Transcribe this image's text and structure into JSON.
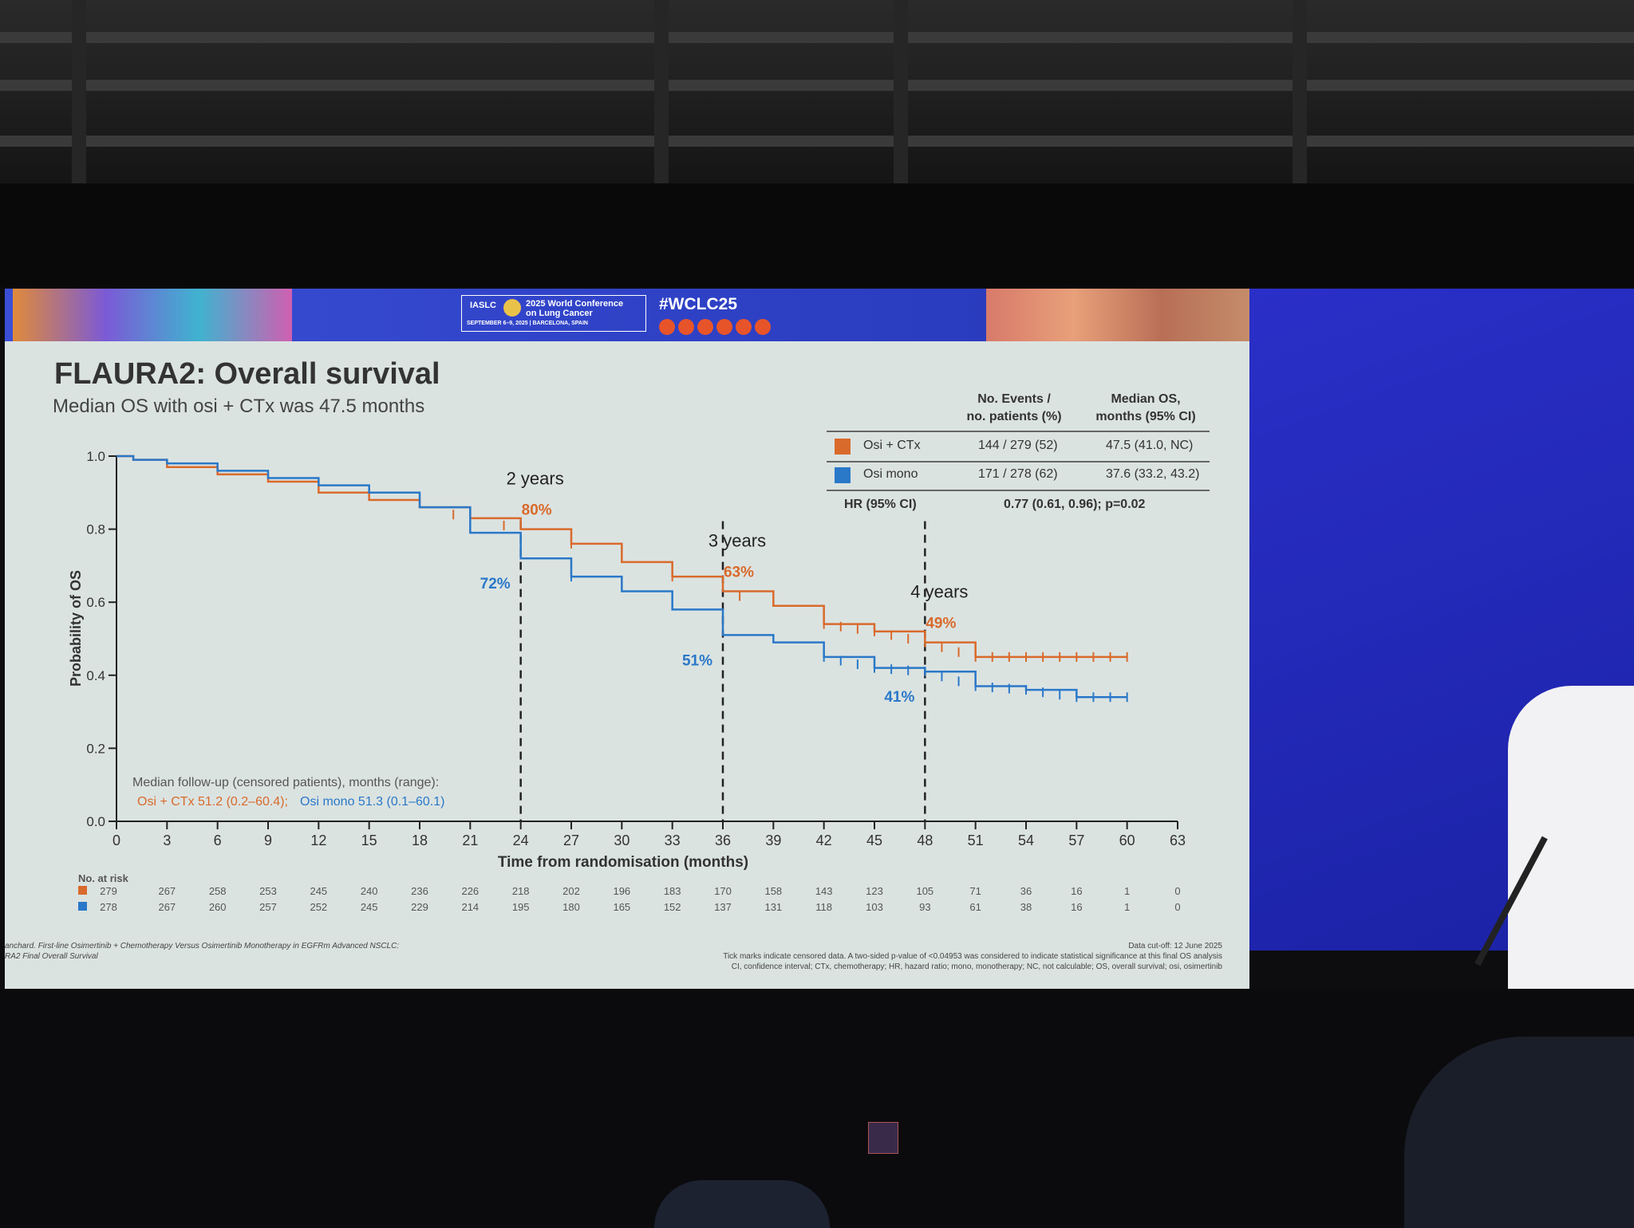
{
  "slide": {
    "title": "FLAURA2: Overall survival",
    "subtitle": "Median OS with osi + CTx was 47.5 months",
    "conference": {
      "org": "IASLC",
      "name_line1": "2025 World Conference",
      "name_line2": "on Lung Cancer",
      "dates": "SEPTEMBER 6–9, 2025 | BARCELONA, SPAIN",
      "hashtag": "#WCLC25"
    },
    "stats_table": {
      "header_col1_line1": "No. Events /",
      "header_col1_line2": "no. patients (%)",
      "header_col2_line1": "Median OS,",
      "header_col2_line2": "months (95% CI)",
      "rows": [
        {
          "arm": "Osi + CTx",
          "events": "144 / 279 (52)",
          "median": "47.5 (41.0, NC)",
          "color": "#d96a2b"
        },
        {
          "arm": "Osi mono",
          "events": "171 / 278 (62)",
          "median": "37.6 (33.2, 43.2)",
          "color": "#2a78c8"
        }
      ],
      "hr_label": "HR (95% CI)",
      "hr_value": "0.77 (0.61, 0.96); p=0.02"
    },
    "followup": {
      "line1": "Median follow-up (censored patients), months (range):",
      "line2_a": "Osi + CTx 51.2 (0.2–60.4);",
      "line2_b": "Osi mono 51.3 (0.1–60.1)"
    },
    "at_risk_title": "No. at risk",
    "footer_left_line1": "anchard. First-line Osimertinib + Chemotherapy Versus Osimertinib Monotherapy in EGFRm Advanced NSCLC:",
    "footer_left_line2": "RA2 Final Overall Survival",
    "footer_right_line1": "Data cut-off: 12 June 2025",
    "footer_right_line2": "Tick marks indicate censored data. A two-sided p-value of <0.04953 was considered to indicate statistical significance at this final OS analysis",
    "footer_right_line3": "CI, confidence interval; CTx, chemotherapy; HR, hazard ratio; mono, monotherapy; NC, not calculable; OS, overall survival; osi, osimertinib"
  },
  "chart_data": {
    "type": "line",
    "xlabel": "Time from randomisation (months)",
    "ylabel": "Probability of OS",
    "xlim": [
      0,
      63
    ],
    "ylim": [
      0,
      1.0
    ],
    "xticks": [
      0,
      3,
      6,
      9,
      12,
      15,
      18,
      21,
      24,
      27,
      30,
      33,
      36,
      39,
      42,
      45,
      48,
      51,
      54,
      57,
      60,
      63
    ],
    "yticks": [
      0.0,
      0.2,
      0.4,
      0.6,
      0.8,
      1.0
    ],
    "ytick_labels": [
      "0.0",
      "0.2",
      "0.4",
      "0.6",
      "0.8",
      "1.0"
    ],
    "series": [
      {
        "name": "Osi + CTx",
        "color": "#d96a2b",
        "x": [
          0,
          1,
          3,
          6,
          9,
          12,
          15,
          18,
          21,
          24,
          27,
          30,
          33,
          36,
          39,
          42,
          45,
          48,
          51,
          54,
          57,
          60
        ],
        "y": [
          1.0,
          0.99,
          0.97,
          0.95,
          0.93,
          0.9,
          0.88,
          0.86,
          0.83,
          0.8,
          0.76,
          0.71,
          0.67,
          0.63,
          0.59,
          0.54,
          0.52,
          0.49,
          0.45,
          0.45,
          0.45,
          0.45
        ],
        "censor_x": [
          20,
          23,
          27,
          33,
          37,
          42,
          43,
          44,
          45,
          46,
          47,
          48,
          49,
          50,
          51,
          52,
          53,
          54,
          55,
          56,
          57,
          58,
          59,
          60
        ]
      },
      {
        "name": "Osi mono",
        "color": "#2a78c8",
        "x": [
          0,
          1,
          3,
          6,
          9,
          12,
          15,
          18,
          21,
          24,
          27,
          30,
          33,
          36,
          39,
          42,
          45,
          48,
          51,
          54,
          57,
          60
        ],
        "y": [
          1.0,
          0.99,
          0.98,
          0.96,
          0.94,
          0.92,
          0.9,
          0.86,
          0.79,
          0.72,
          0.67,
          0.63,
          0.58,
          0.51,
          0.49,
          0.45,
          0.42,
          0.41,
          0.37,
          0.36,
          0.34,
          0.34
        ],
        "censor_x": [
          27,
          42,
          43,
          44,
          45,
          46,
          47,
          48,
          49,
          50,
          51,
          52,
          53,
          54,
          55,
          56,
          57,
          58,
          59,
          60
        ]
      }
    ],
    "annotations": [
      {
        "x": 24,
        "label": "2 years",
        "osi_ctx": "80%",
        "osi_mono": "72%"
      },
      {
        "x": 36,
        "label": "3 years",
        "osi_ctx": "63%",
        "osi_mono": "51%"
      },
      {
        "x": 48,
        "label": "4 years",
        "osi_ctx": "49%",
        "osi_mono": "41%"
      }
    ],
    "at_risk": {
      "times": [
        0,
        3,
        6,
        9,
        12,
        15,
        18,
        21,
        24,
        27,
        30,
        33,
        36,
        39,
        42,
        45,
        48,
        51,
        54,
        57,
        60,
        63
      ],
      "rows": [
        {
          "arm": "Osi + CTx",
          "color": "#d96a2b",
          "values": [
            "279",
            "267",
            "258",
            "253",
            "245",
            "240",
            "236",
            "226",
            "218",
            "202",
            "196",
            "183",
            "170",
            "158",
            "143",
            "123",
            "105",
            "71",
            "36",
            "16",
            "1",
            "0"
          ]
        },
        {
          "arm": "Osi mono",
          "color": "#2a78c8",
          "values": [
            "278",
            "267",
            "260",
            "257",
            "252",
            "245",
            "229",
            "214",
            "195",
            "180",
            "165",
            "152",
            "137",
            "131",
            "118",
            "103",
            "93",
            "61",
            "38",
            "16",
            "1",
            "0"
          ]
        }
      ]
    }
  }
}
